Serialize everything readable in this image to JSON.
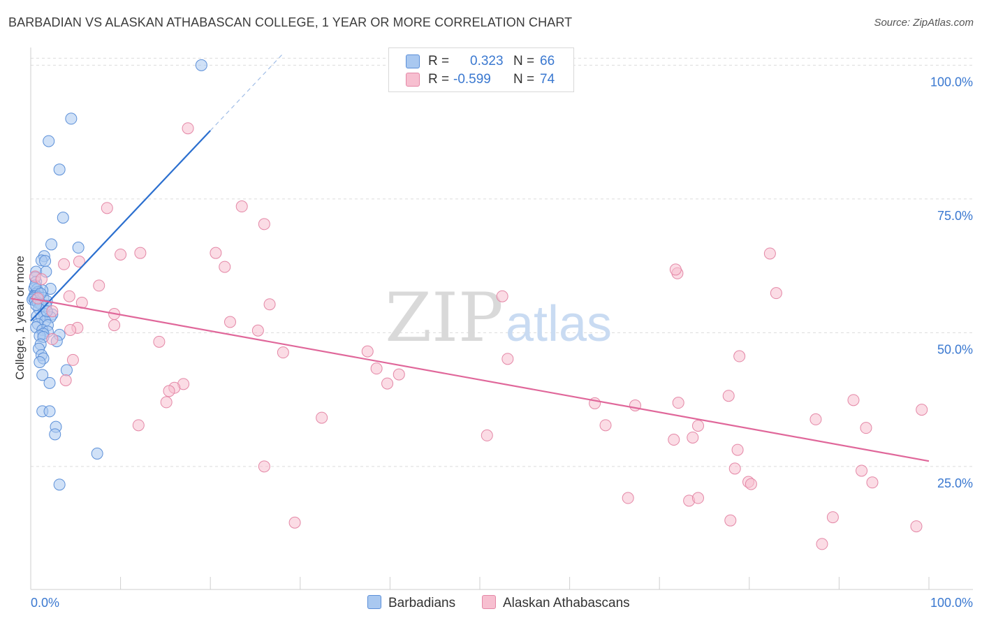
{
  "title": "BARBADIAN VS ALASKAN ATHABASCAN COLLEGE, 1 YEAR OR MORE CORRELATION CHART",
  "source": "Source: ZipAtlas.com",
  "watermark": {
    "zip": "ZIP",
    "atlas": "atlas"
  },
  "colors": {
    "blue_fill": "#a9c8f0",
    "blue_stroke": "#5b8fd8",
    "blue_line": "#2b6fcf",
    "pink_fill": "#f7bfd0",
    "pink_stroke": "#e487a6",
    "pink_line": "#e0679a",
    "axis_text": "#3a78d0",
    "grid": "#dcdcdc"
  },
  "legend": {
    "rows": [
      {
        "name": "Barbadians",
        "r_label": "R =",
        "r_value": "0.323",
        "n_label": "N =",
        "n_value": "66"
      },
      {
        "name": "Alaskan Athabascans",
        "r_label": "R =",
        "r_value": "-0.599",
        "n_label": "N =",
        "n_value": "74"
      }
    ]
  },
  "chart_data": {
    "type": "scatter",
    "title": "BARBADIAN VS ALASKAN ATHABASCAN COLLEGE, 1 YEAR OR MORE CORRELATION CHART",
    "xlabel": "",
    "ylabel": "College, 1 year or more",
    "xlim": [
      0,
      100
    ],
    "ylim": [
      2,
      102
    ],
    "x_tick_labels": [
      "0.0%",
      "100.0%"
    ],
    "y_ticks": [
      25,
      50,
      75,
      100
    ],
    "y_tick_labels": [
      "25.0%",
      "50.0%",
      "75.0%",
      "100.0%"
    ],
    "grid": true,
    "series": [
      {
        "name": "Barbadians",
        "color": "blue",
        "points": [
          [
            19,
            100
          ],
          [
            4.5,
            90
          ],
          [
            2,
            85.8
          ],
          [
            3.2,
            80.5
          ],
          [
            3.6,
            71.5
          ],
          [
            2.3,
            66.5
          ],
          [
            5.3,
            65.9
          ],
          [
            1.5,
            64.3
          ],
          [
            1.2,
            63.5
          ],
          [
            1.6,
            63.4
          ],
          [
            0.6,
            61.4
          ],
          [
            1.7,
            61.4
          ],
          [
            0.5,
            60.3
          ],
          [
            0.6,
            59.5
          ],
          [
            0.4,
            58.3
          ],
          [
            0.7,
            58.1
          ],
          [
            2.2,
            58.2
          ],
          [
            1.3,
            57.9
          ],
          [
            0.8,
            57.6
          ],
          [
            0.5,
            57.2
          ],
          [
            0.4,
            56.9
          ],
          [
            0.5,
            56.8
          ],
          [
            0.9,
            56.6
          ],
          [
            0.3,
            56.5
          ],
          [
            1.4,
            56.5
          ],
          [
            0.2,
            56.2
          ],
          [
            0.5,
            56
          ],
          [
            1.8,
            55.9
          ],
          [
            0.8,
            55.6
          ],
          [
            1.1,
            55.4
          ],
          [
            1.7,
            55
          ],
          [
            0.9,
            54.5
          ],
          [
            1.5,
            53.5
          ],
          [
            2.4,
            53.4
          ],
          [
            0.7,
            53.1
          ],
          [
            1.2,
            52.9
          ],
          [
            2.2,
            52.9
          ],
          [
            1.6,
            52.2
          ],
          [
            0.8,
            51.6
          ],
          [
            1.9,
            51.4
          ],
          [
            0.6,
            51
          ],
          [
            1.3,
            50.5
          ],
          [
            1.9,
            50.2
          ],
          [
            1.4,
            49.8
          ],
          [
            3.2,
            49.6
          ],
          [
            1,
            49.4
          ],
          [
            1.4,
            49.2
          ],
          [
            2.9,
            48.4
          ],
          [
            1.1,
            47.8
          ],
          [
            0.9,
            47
          ],
          [
            1.2,
            45.8
          ],
          [
            1.4,
            45.2
          ],
          [
            1,
            44.5
          ],
          [
            4,
            43
          ],
          [
            1.3,
            42.1
          ],
          [
            2.1,
            40.6
          ],
          [
            1.3,
            35.3
          ],
          [
            2.1,
            35.3
          ],
          [
            2.8,
            32.4
          ],
          [
            2.7,
            31
          ],
          [
            7.4,
            27.4
          ],
          [
            3.2,
            21.6
          ],
          [
            0.5,
            58.8
          ],
          [
            1.1,
            57.3
          ],
          [
            0.6,
            55.2
          ],
          [
            1.8,
            54
          ]
        ],
        "trend": {
          "x": [
            0,
            28
          ],
          "y": [
            52.2,
            102
          ],
          "solid_until_x": 20
        }
      },
      {
        "name": "Alaskan Athabascans",
        "color": "pink",
        "points": [
          [
            17.5,
            88.2
          ],
          [
            8.5,
            73.3
          ],
          [
            23.5,
            73.6
          ],
          [
            26,
            70.3
          ],
          [
            10,
            64.6
          ],
          [
            12.2,
            64.9
          ],
          [
            20.6,
            64.9
          ],
          [
            5.4,
            63.3
          ],
          [
            21.6,
            62.3
          ],
          [
            3.7,
            62.8
          ],
          [
            0.5,
            60.5
          ],
          [
            1.2,
            60
          ],
          [
            7.6,
            58.8
          ],
          [
            4.3,
            56.8
          ],
          [
            0.8,
            56.4
          ],
          [
            5.7,
            55.6
          ],
          [
            26.6,
            55.3
          ],
          [
            2.4,
            54
          ],
          [
            9.3,
            53.5
          ],
          [
            9.3,
            51.4
          ],
          [
            22.2,
            52
          ],
          [
            5.2,
            50.9
          ],
          [
            4.4,
            50.5
          ],
          [
            25.3,
            50.4
          ],
          [
            2.4,
            48.8
          ],
          [
            14.3,
            48.3
          ],
          [
            28.1,
            46.3
          ],
          [
            4.7,
            44.9
          ],
          [
            37.5,
            46.5
          ],
          [
            38.5,
            43.3
          ],
          [
            41,
            42.2
          ],
          [
            39.7,
            40.5
          ],
          [
            3.9,
            41.1
          ],
          [
            17,
            40.4
          ],
          [
            16,
            39.7
          ],
          [
            15.4,
            39.1
          ],
          [
            15.1,
            37
          ],
          [
            32.4,
            34.1
          ],
          [
            12,
            32.7
          ],
          [
            52.5,
            56.8
          ],
          [
            53.1,
            45.1
          ],
          [
            62.8,
            36.8
          ],
          [
            72,
            61.1
          ],
          [
            71.8,
            61.8
          ],
          [
            82.3,
            64.8
          ],
          [
            83,
            57.4
          ],
          [
            78.9,
            45.6
          ],
          [
            77.7,
            38.2
          ],
          [
            67.3,
            36.4
          ],
          [
            72.1,
            36.9
          ],
          [
            64,
            32.7
          ],
          [
            74.3,
            32.6
          ],
          [
            87.4,
            33.8
          ],
          [
            91.6,
            37.4
          ],
          [
            93,
            32.2
          ],
          [
            50.8,
            30.8
          ],
          [
            71.6,
            30
          ],
          [
            73.7,
            30.4
          ],
          [
            78.7,
            28.1
          ],
          [
            26,
            25
          ],
          [
            78.4,
            24.6
          ],
          [
            79.9,
            22.1
          ],
          [
            80.2,
            21.7
          ],
          [
            92.5,
            24.2
          ],
          [
            93.7,
            22
          ],
          [
            66.5,
            19.1
          ],
          [
            73.3,
            18.6
          ],
          [
            74.3,
            19.1
          ],
          [
            77.9,
            14.9
          ],
          [
            89.3,
            15.5
          ],
          [
            99.2,
            35.6
          ],
          [
            98.6,
            13.8
          ],
          [
            88.1,
            10.5
          ],
          [
            29.4,
            14.5
          ]
        ],
        "trend": {
          "x": [
            0,
            100
          ],
          "y": [
            56.4,
            26
          ]
        }
      }
    ]
  }
}
